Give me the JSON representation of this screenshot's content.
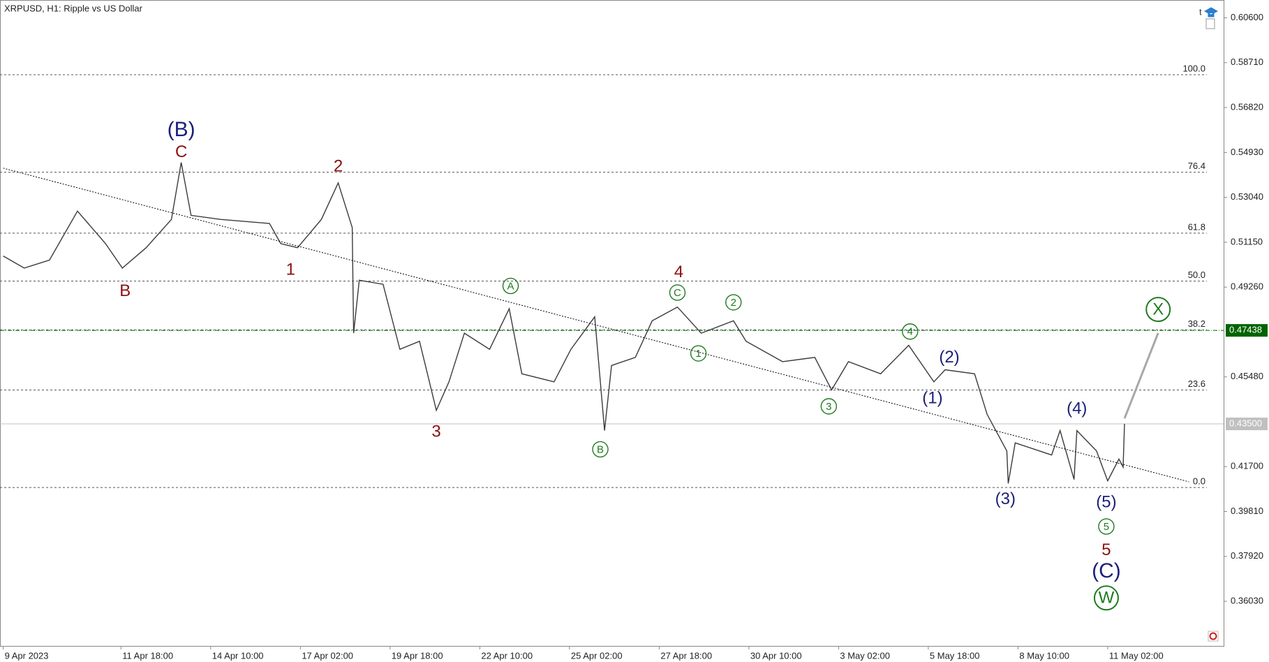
{
  "chart_data": {
    "type": "line",
    "title": "XRPUSD, H1:  Ripple vs US Dollar",
    "icon_label": "t",
    "xlim": [
      -2.3,
      870.7
    ],
    "ylim": [
      0.3415,
      0.6135
    ],
    "xticks": [
      {
        "value": 0,
        "label": "9 Apr 2023"
      },
      {
        "value": 84,
        "label": "11 Apr 18:00"
      },
      {
        "value": 148,
        "label": "14 Apr 10:00"
      },
      {
        "value": 212,
        "label": "17 Apr 02:00"
      },
      {
        "value": 276,
        "label": "19 Apr 18:00"
      },
      {
        "value": 340,
        "label": "22 Apr 10:00"
      },
      {
        "value": 404,
        "label": "25 Apr 02:00"
      },
      {
        "value": 468,
        "label": "27 Apr 18:00"
      },
      {
        "value": 532,
        "label": "30 Apr 10:00"
      },
      {
        "value": 596,
        "label": "3 May 02:00"
      },
      {
        "value": 660,
        "label": "5 May 18:00"
      },
      {
        "value": 724,
        "label": "8 May 10:00"
      },
      {
        "value": 788,
        "label": "11 May 02:00"
      }
    ],
    "yticks": [
      {
        "value": 0.606,
        "label": "0.60600"
      },
      {
        "value": 0.5871,
        "label": "0.58710"
      },
      {
        "value": 0.5682,
        "label": "0.56820"
      },
      {
        "value": 0.5493,
        "label": "0.54930"
      },
      {
        "value": 0.5304,
        "label": "0.53040"
      },
      {
        "value": 0.5115,
        "label": "0.51150"
      },
      {
        "value": 0.4926,
        "label": "0.49260"
      },
      {
        "value": 0.4548,
        "label": "0.45480"
      },
      {
        "value": 0.417,
        "label": "0.41700"
      },
      {
        "value": 0.3981,
        "label": "0.39810"
      },
      {
        "value": 0.3792,
        "label": "0.37920"
      },
      {
        "value": 0.3603,
        "label": "0.36030"
      }
    ],
    "series": [
      {
        "color": "#3a3a3a",
        "x": [
          0,
          15,
          33,
          53,
          73,
          85,
          102,
          120,
          127,
          134,
          155,
          190,
          198,
          210,
          227,
          239,
          249,
          250,
          254,
          271,
          283,
          297,
          309,
          318,
          329,
          347,
          361,
          370,
          393,
          405,
          422,
          429,
          434,
          451,
          463,
          481,
          498,
          521,
          530,
          556,
          579,
          591,
          603,
          626,
          646,
          664,
          672,
          693,
          702,
          716,
          717,
          722,
          748,
          754,
          764,
          766,
          780,
          788,
          796,
          799,
          800
        ],
        "values": [
          0.5057,
          0.5006,
          0.504,
          0.5246,
          0.5109,
          0.5006,
          0.5092,
          0.5211,
          0.5451,
          0.5228,
          0.5211,
          0.5194,
          0.5109,
          0.5092,
          0.5211,
          0.5365,
          0.5177,
          0.4732,
          0.4955,
          0.4938,
          0.4664,
          0.4698,
          0.4407,
          0.4527,
          0.4732,
          0.4664,
          0.4835,
          0.4561,
          0.4527,
          0.4664,
          0.4801,
          0.4322,
          0.4596,
          0.463,
          0.4784,
          0.4842,
          0.4732,
          0.4784,
          0.4698,
          0.4612,
          0.463,
          0.4493,
          0.4612,
          0.4561,
          0.4681,
          0.4527,
          0.4578,
          0.4561,
          0.439,
          0.4236,
          0.4099,
          0.427,
          0.4219,
          0.4322,
          0.4116,
          0.4322,
          0.4236,
          0.411,
          0.4202,
          0.4168,
          0.435
        ]
      },
      {
        "color": "#000000",
        "dash": "dotted",
        "x": [
          0,
          846
        ],
        "values": [
          0.5427,
          0.4106
        ]
      },
      {
        "color": "#a8a8a8",
        "x": [
          800,
          824
        ],
        "values": [
          0.4373,
          0.4733
        ]
      }
    ],
    "fib_levels": [
      {
        "label": "100.0",
        "value": 0.58205
      },
      {
        "label": "76.4",
        "value": 0.54098
      },
      {
        "label": "61.8",
        "value": 0.51532
      },
      {
        "label": "50.0",
        "value": 0.49513
      },
      {
        "label": "38.2",
        "value": 0.4746
      },
      {
        "label": "23.6",
        "value": 0.44927
      },
      {
        "label": "0.0",
        "value": 0.4082
      }
    ],
    "price_lines": [
      {
        "value": 0.47438,
        "label": "0.47438",
        "color": "#006400"
      },
      {
        "value": 0.435,
        "label": "0.43500",
        "color": "#c0c0c0"
      }
    ],
    "annotations": [
      {
        "text": "(B)",
        "x": 127,
        "y": 0.5588,
        "color": "#1b1f7a",
        "big": true
      },
      {
        "text": "C",
        "x": 127,
        "y": 0.5495,
        "color": "#8b1010"
      },
      {
        "text": "2",
        "x": 239,
        "y": 0.5434,
        "color": "#8b1010"
      },
      {
        "text": "B",
        "x": 87,
        "y": 0.491,
        "color": "#8b1010"
      },
      {
        "text": "1",
        "x": 205,
        "y": 0.4999,
        "color": "#8b1010"
      },
      {
        "text": "3",
        "x": 309,
        "y": 0.4318,
        "color": "#8b1010"
      },
      {
        "text": "A",
        "x": 362,
        "y": 0.4931,
        "color": "#1e7b1e",
        "circled": true
      },
      {
        "text": "B",
        "x": 426,
        "y": 0.4243,
        "color": "#1e7b1e",
        "circled": true
      },
      {
        "text": "4",
        "x": 482,
        "y": 0.4989,
        "color": "#8b1010"
      },
      {
        "text": "C",
        "x": 481,
        "y": 0.4903,
        "color": "#1e7b1e",
        "circled": true
      },
      {
        "text": "2",
        "x": 521,
        "y": 0.4862,
        "color": "#1e7b1e",
        "circled": true
      },
      {
        "text": "1",
        "x": 496,
        "y": 0.4647,
        "color": "#1e7b1e",
        "circled": true
      },
      {
        "text": "3",
        "x": 589,
        "y": 0.4424,
        "color": "#1e7b1e",
        "circled": true
      },
      {
        "text": "4",
        "x": 647,
        "y": 0.4739,
        "color": "#1e7b1e",
        "circled": true
      },
      {
        "text": "(2)",
        "x": 675,
        "y": 0.463,
        "color": "#1b1f7a"
      },
      {
        "text": "(1)",
        "x": 663,
        "y": 0.4459,
        "color": "#1b1f7a"
      },
      {
        "text": "(3)",
        "x": 715,
        "y": 0.4034,
        "color": "#1b1f7a"
      },
      {
        "text": "(4)",
        "x": 766,
        "y": 0.4414,
        "color": "#1b1f7a"
      },
      {
        "text": "(5)",
        "x": 787,
        "y": 0.402,
        "color": "#1b1f7a"
      },
      {
        "text": "5",
        "x": 787,
        "y": 0.3918,
        "color": "#1e7b1e",
        "circled": true
      },
      {
        "text": "5",
        "x": 787,
        "y": 0.3819,
        "color": "#8b1010"
      },
      {
        "text": "(C)",
        "x": 787,
        "y": 0.373,
        "color": "#1b1f7a",
        "big": true
      },
      {
        "text": "W",
        "x": 787,
        "y": 0.3617,
        "color": "#1e7b1e",
        "circled": true,
        "big": true
      },
      {
        "text": "X",
        "x": 824,
        "y": 0.4832,
        "color": "#1e7b1e",
        "circled": true,
        "big": true
      }
    ]
  }
}
